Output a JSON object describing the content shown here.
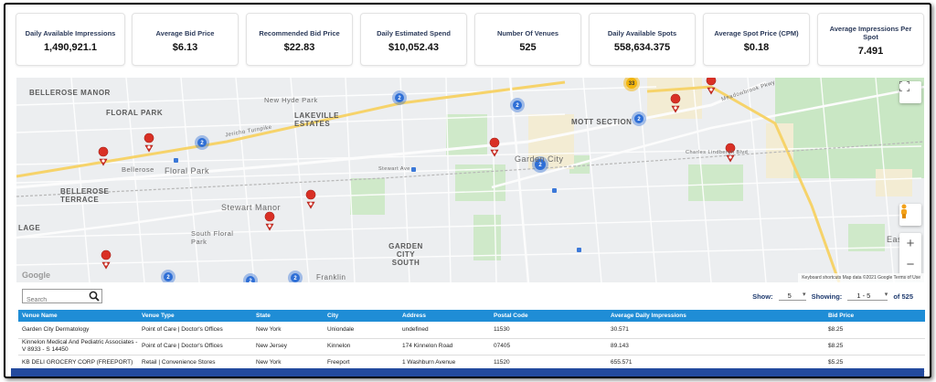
{
  "stats": [
    {
      "label": "Daily Available Impressions",
      "value": "1,490,921.1"
    },
    {
      "label": "Average Bid Price",
      "value": "$6.13"
    },
    {
      "label": "Recommended Bid Price",
      "value": "$22.83"
    },
    {
      "label": "Daily Estimated Spend",
      "value": "$10,052.43"
    },
    {
      "label": "Number Of Venues",
      "value": "525"
    },
    {
      "label": "Daily Available Spots",
      "value": "558,634.375"
    },
    {
      "label": "Average Spot Price (CPM)",
      "value": "$0.18"
    },
    {
      "label": "Average Impressions Per Spot",
      "value": "7.491"
    }
  ],
  "map": {
    "labels": {
      "bellerose_manor": "BELLEROSE MANOR",
      "floral_park_top": "FLORAL PARK",
      "new_hyde_park": "New Hyde Park",
      "lakeville_estates": "LAKEVILLE ESTATES",
      "mott_section": "MOTT SECTION",
      "bellerose": "Bellerose",
      "floral_park": "Floral Park",
      "bellerose_terrace": "BELLEROSE TERRACE",
      "stewart_manor": "Stewart Manor",
      "south_floral_park": "South Floral Park",
      "garden_city": "Garden City",
      "garden_city_south": "GARDEN CITY SOUTH",
      "east_meadow": "East Me",
      "lage": "LAGE",
      "franklin": "Franklin",
      "jericho": "Jericho Turnpike",
      "meadowbrook": "Meadowbrook Pkwy",
      "charles": "Charles Lindbergh Blvd",
      "stewart_ave": "Stewart Ave"
    },
    "clusters": [
      "33",
      "2",
      "2",
      "2",
      "2",
      "2",
      "2",
      "2",
      "2"
    ],
    "attribution": "Keyboard shortcuts   Map data ©2021 Google   Terms of Use",
    "google_logo": "Google"
  },
  "search": {
    "placeholder": "Search"
  },
  "pager": {
    "show_label": "Show:",
    "show_value": "5",
    "showing_label": "Showing:",
    "showing_value": "1 - 5",
    "of_label": "of 525"
  },
  "table": {
    "columns": [
      "Venue Name",
      "Venue Type",
      "State",
      "City",
      "Address",
      "Postal Code",
      "Average Daily Impressions",
      "Bid Price"
    ],
    "rows": [
      [
        "Garden City Dermatology",
        "Point of Care | Doctor's Offices",
        "New York",
        "Uniondale",
        "undefined",
        "11530",
        "30.571",
        "$8.25"
      ],
      [
        "Kinnelon Medical And Pediatric Associates - V 8933 - S 14450",
        "Point of Care | Doctor's Offices",
        "New Jersey",
        "Kinnelon",
        "174 Kinnelon Road",
        "07405",
        "89.143",
        "$8.25"
      ],
      [
        "KB DELI GROCERY CORP (FREEPORT)",
        "Retail | Convenience Stores",
        "New York",
        "Freeport",
        "1 Washburn Avenue",
        "11520",
        "655.571",
        "$5.25"
      ]
    ]
  },
  "colors": {
    "accent": "#1f8dd6",
    "pin": "#d93025",
    "cluster": "#2f6fd6",
    "cluster_large": "#f2b40a"
  }
}
